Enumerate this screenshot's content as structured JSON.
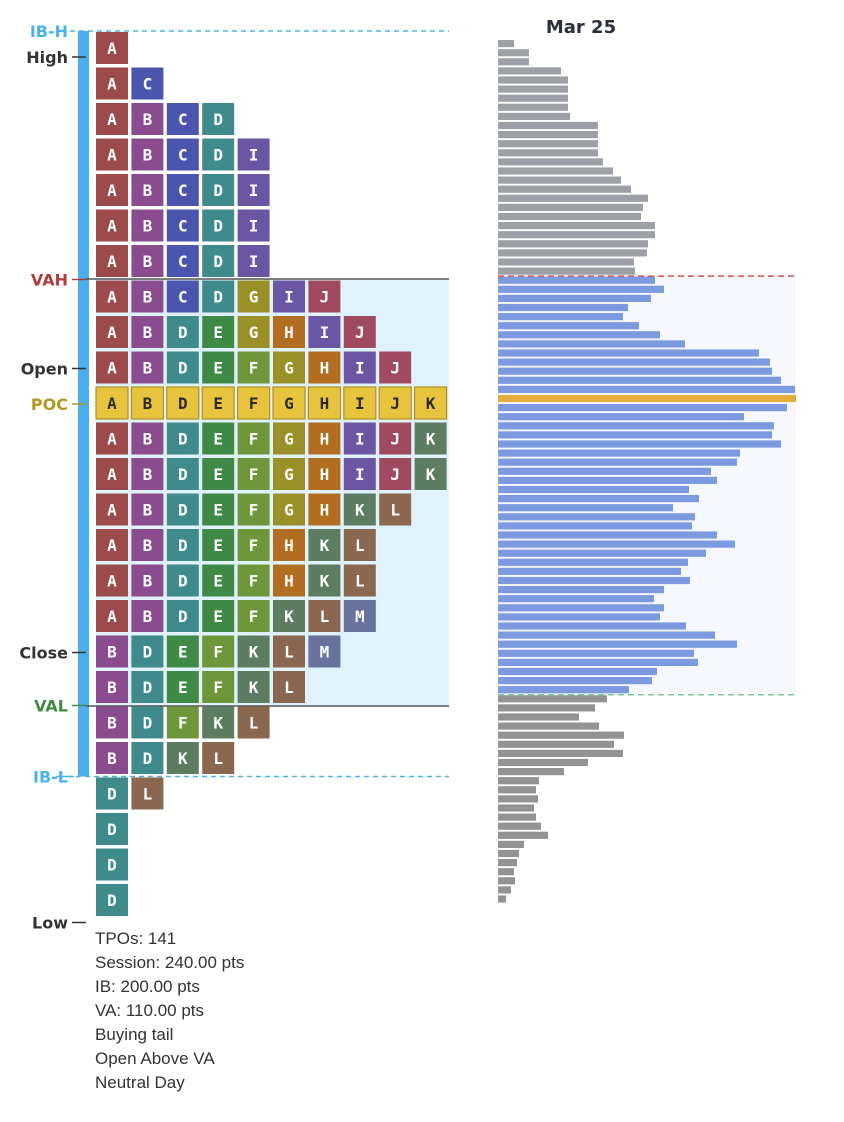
{
  "chart_data": {
    "type": "tpo_market_profile",
    "date": "Mar 25",
    "colors": {
      "letters": {
        "A": "#9c4a4a",
        "B": "#8a4c8f",
        "C": "#4b55ad",
        "D": "#3f8a8a",
        "E": "#3f8a44",
        "F": "#6e963a",
        "G": "#9a9028",
        "H": "#b36d20",
        "I": "#6a56a2",
        "J": "#a04a60",
        "K": "#5c7d62",
        "L": "#8b6750",
        "M": "#69729c"
      },
      "poc_fill": "#e8c43e",
      "poc_border": "#b09020",
      "poc_text": "#2a2a2a",
      "ib_bar": "#4aaef0",
      "ib_line": "#4ab4e8",
      "value_area_bg": "#e0f2fb",
      "va_line": "#555555",
      "vol_above": "#9ea0a7",
      "vol_value_area": "#7b9ae0",
      "vol_poc": "#e7ad3c",
      "vol_below": "#939393",
      "vol_va_bg": "#f6f8fd",
      "vah_dash": "#d9534f",
      "val_dash": "#7dc99a",
      "vah_label": "#b03a3a",
      "poc_label": "#b5961e",
      "val_label": "#3f8a3f",
      "ib_label": "#4ab4e8",
      "axis_label": "#333333"
    },
    "rows_top_to_bottom": [
      "A",
      "AC",
      "ABCD",
      "ABCDI",
      "ABCDI",
      "ABCDI",
      "ABCDI",
      "ABCDGIJ",
      "ABDEGHIJ",
      "ABDEFGHIJ",
      "ABDEFGHIJK",
      "ABDEFGHIJK",
      "ABDEFGHIJK",
      "ABDEFGHKL",
      "ABDEFHKL",
      "ABDEFHKL",
      "ABDEFKLM",
      "BDEFKLM",
      "BDEFKL",
      "BDFKL",
      "BDKL",
      "DL",
      "D",
      "D",
      "D"
    ],
    "poc_row_index": 10,
    "value_area_rows": [
      7,
      18
    ],
    "initial_balance_rows": [
      0,
      20
    ],
    "level_labels": [
      {
        "text": "IB-H",
        "row": 0,
        "kind": "ib"
      },
      {
        "text": "High",
        "row": 0,
        "kind": "plain"
      },
      {
        "text": "VAH",
        "row": 7,
        "kind": "vah"
      },
      {
        "text": "Open",
        "row": 9,
        "kind": "plain"
      },
      {
        "text": "POC",
        "row": 10,
        "kind": "poc"
      },
      {
        "text": "Close",
        "row": 17,
        "kind": "plain"
      },
      {
        "text": "VAL",
        "row": 18,
        "kind": "val"
      },
      {
        "text": "IB-L",
        "row": 20,
        "kind": "ib"
      },
      {
        "text": "Low",
        "row": 24,
        "kind": "plain"
      }
    ],
    "volume_bars": [
      16,
      31,
      31,
      63,
      70,
      70,
      70,
      70,
      72,
      100,
      100,
      100,
      100,
      105,
      115,
      123,
      133,
      150,
      145,
      143,
      157,
      157,
      150,
      149,
      136,
      137,
      157,
      166,
      153,
      130,
      125,
      141,
      162,
      187,
      261,
      272,
      274,
      283,
      297,
      298,
      289,
      246,
      276,
      274,
      283,
      242,
      239,
      213,
      219,
      191,
      201,
      175,
      197,
      194,
      219,
      237,
      208,
      190,
      183,
      192,
      166,
      156,
      166,
      162,
      188,
      217,
      239,
      196,
      200,
      159,
      154,
      131,
      109,
      97,
      81,
      101,
      126,
      116,
      125,
      90,
      66,
      41,
      38,
      40,
      36,
      38,
      43,
      50,
      26,
      21,
      19,
      16,
      17,
      13,
      8
    ],
    "volume_segments": {
      "value_area_start": 26,
      "poc_index": 39,
      "below_start": 72
    },
    "stats": [
      "TPOs: 141",
      "Session: 240.00 pts",
      "IB: 200.00 pts",
      "VA: 110.00 pts",
      "Buying tail",
      "Open Above VA",
      "Neutral Day"
    ]
  }
}
